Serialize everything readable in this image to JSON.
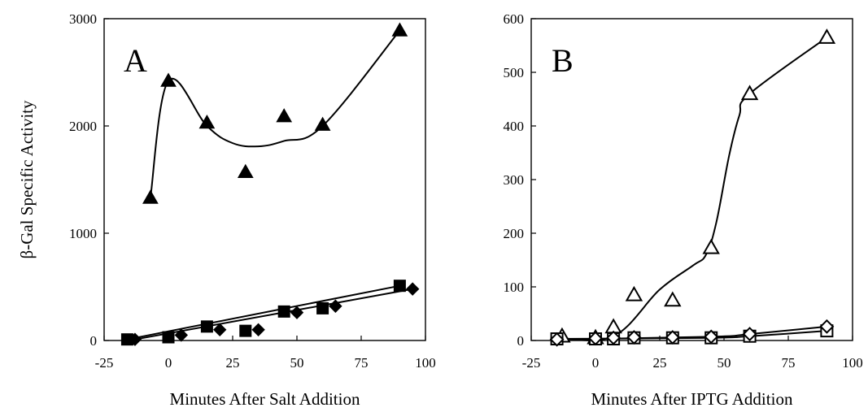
{
  "chart_data": [
    {
      "type": "scatter",
      "panel_label": "A",
      "xlabel": "Minutes After Salt Addition",
      "ylabel": "β-Gal Specific Activity",
      "xlim": [
        -25,
        100
      ],
      "ylim": [
        0,
        3000
      ],
      "x_ticks": [
        -25,
        0,
        25,
        50,
        75,
        100
      ],
      "y_ticks": [
        0,
        1000,
        2000,
        3000
      ],
      "grid": false,
      "series": [
        {
          "marker": "filled-triangle",
          "points": [
            [
              -7,
              1330
            ],
            [
              0,
              2420
            ],
            [
              15,
              2030
            ],
            [
              30,
              1570
            ],
            [
              45,
              2090
            ],
            [
              60,
              2010
            ],
            [
              90,
              2890
            ]
          ],
          "curve": [
            [
              -7,
              1330
            ],
            [
              0,
              2420
            ],
            [
              15,
              2000
            ],
            [
              25,
              1840
            ],
            [
              35,
              1810
            ],
            [
              45,
              1860
            ],
            [
              60,
              2000
            ],
            [
              90,
              2890
            ]
          ]
        },
        {
          "marker": "filled-square",
          "points": [
            [
              -16,
              10
            ],
            [
              0,
              30
            ],
            [
              15,
              130
            ],
            [
              30,
              90
            ],
            [
              45,
              270
            ],
            [
              60,
              300
            ],
            [
              90,
              510
            ]
          ],
          "curve": [
            [
              -16,
              10
            ],
            [
              90,
              510
            ]
          ]
        },
        {
          "marker": "filled-diamond",
          "points": [
            [
              -13,
              10
            ],
            [
              5,
              50
            ],
            [
              20,
              100
            ],
            [
              35,
              100
            ],
            [
              50,
              260
            ],
            [
              65,
              320
            ],
            [
              95,
              480
            ]
          ],
          "curve": [
            [
              -13,
              10
            ],
            [
              95,
              480
            ]
          ]
        }
      ]
    },
    {
      "type": "scatter",
      "panel_label": "B",
      "xlabel": "Minutes After IPTG Addition",
      "ylabel": "",
      "xlim": [
        -25,
        100
      ],
      "ylim": [
        0,
        600
      ],
      "x_ticks": [
        -25,
        0,
        25,
        50,
        75,
        100
      ],
      "y_ticks": [
        0,
        100,
        200,
        300,
        400,
        500,
        600
      ],
      "grid": false,
      "series": [
        {
          "marker": "open-triangle",
          "points": [
            [
              -13,
              8
            ],
            [
              0,
              5
            ],
            [
              7,
              25
            ],
            [
              15,
              85
            ],
            [
              30,
              75
            ],
            [
              45,
              173
            ],
            [
              60,
              460
            ],
            [
              90,
              565
            ]
          ],
          "curve": [
            [
              -15,
              5
            ],
            [
              7,
              8
            ],
            [
              25,
              95
            ],
            [
              38,
              140
            ],
            [
              43,
              160
            ],
            [
              47,
              220
            ],
            [
              52,
              345
            ],
            [
              56,
              420
            ],
            [
              60,
              460
            ],
            [
              90,
              565
            ]
          ]
        },
        {
          "marker": "open-square",
          "points": [
            [
              -15,
              3
            ],
            [
              0,
              3
            ],
            [
              7,
              3
            ],
            [
              15,
              5
            ],
            [
              30,
              5
            ],
            [
              45,
              5
            ],
            [
              60,
              8
            ],
            [
              90,
              18
            ]
          ],
          "curve": [
            [
              -15,
              3
            ],
            [
              45,
              5
            ],
            [
              60,
              8
            ],
            [
              90,
              18
            ]
          ]
        },
        {
          "marker": "open-diamond",
          "points": [
            [
              -15,
              2
            ],
            [
              0,
              4
            ],
            [
              7,
              5
            ],
            [
              15,
              6
            ],
            [
              30,
              6
            ],
            [
              45,
              7
            ],
            [
              60,
              12
            ],
            [
              90,
              26
            ]
          ],
          "curve": [
            [
              -15,
              2
            ],
            [
              45,
              7
            ],
            [
              60,
              12
            ],
            [
              90,
              26
            ]
          ]
        }
      ]
    }
  ]
}
